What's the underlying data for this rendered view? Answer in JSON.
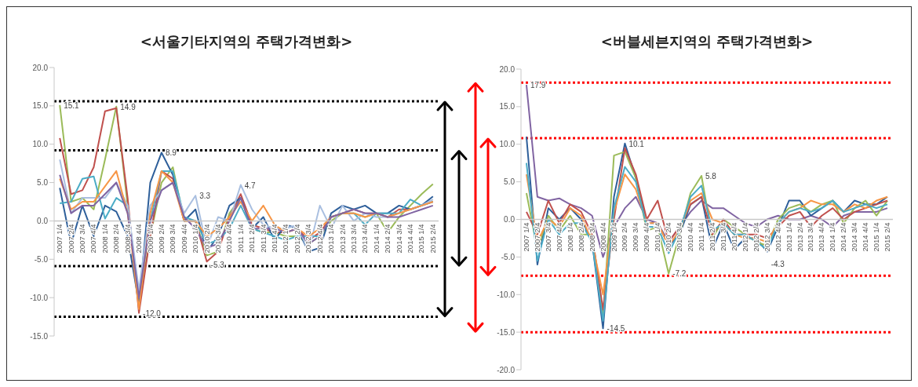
{
  "chart_data": [
    {
      "type": "line",
      "title": "<서울기타지역의 주택가격변화>",
      "categories": [
        "2007 1/4",
        "2007 2/4",
        "2007 3/4",
        "2007 4/4",
        "2008 1/4",
        "2008 2/4",
        "2008 3/4",
        "2008 4/4",
        "2009 1/4",
        "2009 2/4",
        "2009 3/4",
        "2009 4/4",
        "2010 1/4",
        "2010 2/4",
        "2010 3/4",
        "2010 4/4",
        "2011 1/4",
        "2011 2/4",
        "2011 3/4",
        "2011 4/4",
        "2012 1/4",
        "2012 2/4",
        "2012 3/4",
        "2012 4/4",
        "2013 1/4",
        "2013 2/4",
        "2013 3/4",
        "2013 4/4",
        "2014 1/4",
        "2014 2/4",
        "2014 3/4",
        "2014 4/4",
        "2015 1/4",
        "2015 2/4"
      ],
      "series": [
        {
          "color": "#9bbb59",
          "values": [
            15.1,
            2.5,
            3,
            1.5,
            8,
            14.9,
            2,
            -11,
            -2,
            5,
            7,
            0,
            0,
            -4.5,
            -4,
            1,
            3,
            -1,
            -1.5,
            -1.5,
            -2,
            -2,
            -3,
            -2,
            0,
            1,
            1,
            0.5,
            1,
            -1.5,
            0.5,
            2,
            3.5,
            4.8
          ]
        },
        {
          "color": "#c0504d",
          "values": [
            10.8,
            3.5,
            4,
            7,
            14.3,
            14.7,
            3,
            -12.0,
            -2,
            6.5,
            5.5,
            0,
            0,
            -5.3,
            -4,
            0.5,
            3.5,
            -0.5,
            -1,
            -1.5,
            -1.5,
            -1,
            -2.5,
            -1.5,
            0.5,
            1,
            1.5,
            1,
            1,
            0.5,
            1.5,
            1.5,
            2,
            2.5
          ]
        },
        {
          "color": "#2e5f9a",
          "values": [
            4.3,
            -3,
            2,
            -2,
            2,
            1.2,
            -2,
            -10.8,
            5,
            8.9,
            6,
            0,
            1.5,
            -4,
            -2,
            2,
            3,
            -1,
            0.5,
            -2.5,
            -0.5,
            -1,
            -4,
            -3.5,
            1,
            2,
            1.5,
            2,
            1,
            1,
            2,
            1.5,
            2,
            3.2
          ]
        },
        {
          "color": "#4bacc6",
          "values": [
            2.3,
            2.5,
            5.5,
            5.8,
            0.3,
            3,
            2,
            -10,
            0,
            6.5,
            6.5,
            0.5,
            0,
            -3,
            -2.5,
            -1,
            2,
            -1,
            -1.5,
            -2,
            -2.5,
            -2,
            -2,
            -2,
            0.5,
            1,
            1,
            -0.5,
            1,
            1,
            1,
            2.8,
            2,
            2.5
          ]
        },
        {
          "color": "#a9bfe0",
          "values": [
            8,
            1,
            3,
            3,
            3,
            5,
            2,
            -9,
            2,
            4,
            5,
            1,
            3.3,
            -3.5,
            0.5,
            0,
            4.7,
            1.5,
            -0.5,
            -1,
            -1,
            -0.5,
            -4,
            2,
            -1,
            2,
            0,
            1,
            0.5,
            0.5,
            1,
            1.5,
            2,
            2.8
          ]
        },
        {
          "color": "#f79646",
          "values": [
            5.5,
            1.5,
            2.5,
            2.5,
            4.5,
            6.5,
            1,
            -11.5,
            1,
            6.5,
            5,
            0,
            0,
            -2,
            -1,
            0.5,
            2.5,
            0,
            2,
            -0.5,
            -1.5,
            -1,
            -2,
            -1,
            0.5,
            1,
            1,
            0.5,
            1,
            0.5,
            1,
            1.5,
            2,
            2.5
          ]
        },
        {
          "color": "#8064a2",
          "values": [
            6,
            1,
            2,
            2,
            3.5,
            5,
            1,
            -10,
            0,
            4,
            5,
            0.5,
            -1,
            -3.5,
            -3,
            0,
            3,
            -1,
            -1,
            -1,
            -1.5,
            -1,
            -3,
            -2,
            0.5,
            1,
            1.5,
            1,
            1,
            0.5,
            0.5,
            1,
            1.5,
            2
          ]
        }
      ],
      "ylim": [
        -15,
        20
      ],
      "yticks": [
        {
          "value": -15,
          "label": "-15.0"
        },
        {
          "value": -10,
          "label": "-10.0"
        },
        {
          "value": -5,
          "label": "-5.0"
        },
        {
          "value": 0,
          "label": "0.0"
        },
        {
          "value": 5,
          "label": "5.0"
        },
        {
          "value": 10,
          "label": "10.0"
        },
        {
          "value": 15,
          "label": "15.0"
        },
        {
          "value": 20,
          "label": "20.0"
        }
      ],
      "marker": "none",
      "line_style": "solid",
      "ref_lines": [
        {
          "axis": "y",
          "value": 15.6,
          "color": "#000000",
          "line_style": "dotted"
        },
        {
          "axis": "y",
          "value": 9.2,
          "color": "#000000",
          "line_style": "dotted"
        },
        {
          "axis": "y",
          "value": -5.9,
          "color": "#000000",
          "line_style": "dotted"
        },
        {
          "axis": "y",
          "value": -12.5,
          "color": "#000000",
          "line_style": "dotted"
        }
      ],
      "annotations": [
        {
          "text": "15.1",
          "x": "2007 1/4",
          "y": 15.1
        },
        {
          "text": "14.9",
          "x": "2008 2/4",
          "y": 14.9
        },
        {
          "text": "-12.0",
          "x": "2008 4/4",
          "y": -12.0
        },
        {
          "text": "8.9",
          "x": "2009 2/4",
          "y": 8.9
        },
        {
          "text": "3.3",
          "x": "2010 1/4",
          "y": 3.3
        },
        {
          "text": "-5.3",
          "x": "2010 2/4",
          "y": -5.3
        },
        {
          "text": "4.7",
          "x": "2011 1/4",
          "y": 4.7
        }
      ]
    },
    {
      "type": "line",
      "title": "<버블세븐지역의 주택가격변화>",
      "categories": [
        "2007 1/4",
        "2007 2/4",
        "2007 3/4",
        "2007 4/4",
        "2008 1/4",
        "2008 2/4",
        "2008 3/4",
        "2008 4/4",
        "2009 1/4",
        "2009 2/4",
        "2009 3/4",
        "2009 4/4",
        "2010 1/4",
        "2010 2/4",
        "2010 3/4",
        "2010 4/4",
        "2011 1/4",
        "2011 2/4",
        "2011 3/4",
        "2011 4/4",
        "2012 1/4",
        "2012 2/4",
        "2012 3/4",
        "2012 4/4",
        "2013 1/4",
        "2013 2/4",
        "2013 3/4",
        "2013 4/4",
        "2014 1/4",
        "2014 2/4",
        "2014 3/4",
        "2014 4/4",
        "2015 1/4",
        "2015 2/4"
      ],
      "series": [
        {
          "color": "#8064a2",
          "values": [
            17.9,
            3,
            2.5,
            2.8,
            2,
            1.5,
            0.5,
            -5,
            -1,
            1.5,
            3,
            0,
            -0.5,
            -3,
            -1,
            1,
            2.5,
            1.5,
            1.5,
            0.5,
            -0.5,
            -1,
            0,
            0.5,
            0,
            0,
            0.5,
            0,
            -1,
            0.5,
            1,
            1,
            1,
            1.5
          ]
        },
        {
          "color": "#2e5f9a",
          "values": [
            11,
            -6,
            1.5,
            0,
            1.5,
            0,
            -3,
            -14.5,
            3,
            10.1,
            5.5,
            -0.5,
            -0.5,
            -3.5,
            -2,
            2,
            3,
            -4,
            -0.5,
            -4,
            -2.5,
            -2.5,
            -4.3,
            -1,
            2.5,
            2.5,
            0.5,
            1.5,
            2.5,
            1,
            2.5,
            2,
            2,
            3
          ]
        },
        {
          "color": "#9bbb59",
          "values": [
            3.5,
            -4,
            0.5,
            -1.5,
            0.5,
            -2,
            -2,
            -13,
            8.5,
            9,
            5.5,
            -1.5,
            -1,
            -7.2,
            -2,
            3.5,
            5.8,
            -2.5,
            0,
            -1,
            -2,
            -3,
            -3.5,
            0,
            1.5,
            2,
            1,
            2,
            2.5,
            -0.5,
            1.5,
            2.5,
            0.5,
            2.5
          ]
        },
        {
          "color": "#c0504d",
          "values": [
            1,
            -2,
            2.5,
            -0.5,
            2,
            1,
            -2,
            -12,
            0,
            9.5,
            6,
            0,
            2.5,
            -3,
            -1,
            2,
            3,
            -2,
            0,
            -2,
            -2,
            -2,
            -2.5,
            -1,
            0.5,
            1,
            -1,
            0.5,
            1.5,
            0,
            1,
            1.5,
            2,
            2.5
          ]
        },
        {
          "color": "#f79646",
          "values": [
            6,
            -3,
            0,
            -1,
            1.5,
            0.5,
            -3,
            -10,
            1,
            6,
            4,
            -0.5,
            -0.5,
            -3.5,
            -1.5,
            2.5,
            3.5,
            0,
            -0.5,
            -2,
            -2.5,
            -2.5,
            -3,
            -0.5,
            1,
            1.5,
            2.5,
            2,
            2,
            1,
            2,
            1.5,
            2.5,
            3
          ]
        },
        {
          "color": "#4bacc6",
          "values": [
            7.5,
            -5.5,
            0,
            -2,
            -0.5,
            -0.5,
            -3,
            -13.5,
            1.5,
            7,
            5,
            -1,
            -1,
            -4.5,
            -1.5,
            3,
            4.5,
            -1.5,
            -0.5,
            -2,
            -2,
            -3,
            -4,
            -0.5,
            1,
            1.5,
            1,
            1.5,
            2.5,
            1,
            1.5,
            2,
            1.5,
            2
          ]
        }
      ],
      "ylim": [
        -20,
        20
      ],
      "yticks": [
        {
          "value": -20,
          "label": "-20.0"
        },
        {
          "value": -15,
          "label": "-15.0"
        },
        {
          "value": -10,
          "label": "-10.0"
        },
        {
          "value": -5,
          "label": "-5.0"
        },
        {
          "value": 0,
          "label": "0.0"
        },
        {
          "value": 5,
          "label": "5.0"
        },
        {
          "value": 10,
          "label": "10.0"
        },
        {
          "value": 15,
          "label": "15.0"
        },
        {
          "value": 20,
          "label": "20.0"
        }
      ],
      "marker": "none",
      "line_style": "solid",
      "ref_lines": [
        {
          "axis": "y",
          "value": 18.2,
          "color": "#ff0000",
          "line_style": "dotted"
        },
        {
          "axis": "y",
          "value": 10.8,
          "color": "#ff0000",
          "line_style": "dotted"
        },
        {
          "axis": "y",
          "value": -7.5,
          "color": "#ff0000",
          "line_style": "dotted"
        },
        {
          "axis": "y",
          "value": -15.0,
          "color": "#ff0000",
          "line_style": "dotted"
        }
      ],
      "annotations": [
        {
          "text": "17.9",
          "x": "2007 1/4",
          "y": 17.9
        },
        {
          "text": "-14.5",
          "x": "2008 4/4",
          "y": -14.5
        },
        {
          "text": "10.1",
          "x": "2009 2/4",
          "y": 10.1
        },
        {
          "text": "-7.2",
          "x": "2010 2/4",
          "y": -7.2
        },
        {
          "text": "5.8",
          "x": "2011 1/4",
          "y": 5.8
        },
        {
          "text": "-4.3",
          "x": "2012 3/4",
          "y": -4.3
        }
      ]
    }
  ]
}
